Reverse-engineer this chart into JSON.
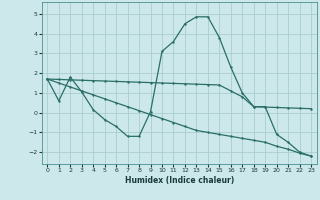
{
  "xlabel": "Humidex (Indice chaleur)",
  "bg_color": "#cce8ea",
  "grid_color": "#aacdd0",
  "line_color": "#2a6e68",
  "xlim": [
    -0.5,
    23.5
  ],
  "ylim": [
    -2.6,
    5.6
  ],
  "xticks": [
    0,
    1,
    2,
    3,
    4,
    5,
    6,
    7,
    8,
    9,
    10,
    11,
    12,
    13,
    14,
    15,
    16,
    17,
    18,
    19,
    20,
    21,
    22,
    23
  ],
  "yticks": [
    -2,
    -1,
    0,
    1,
    2,
    3,
    4,
    5
  ],
  "curve1_x": [
    0,
    1,
    2,
    3,
    4,
    5,
    6,
    7,
    8,
    9,
    10,
    11,
    12,
    13,
    14,
    15,
    16,
    17,
    18,
    19,
    20,
    21,
    22,
    23
  ],
  "curve1_y": [
    1.7,
    0.6,
    1.8,
    1.05,
    0.15,
    -0.35,
    -0.7,
    -1.2,
    -1.2,
    0.05,
    3.1,
    3.6,
    4.5,
    4.85,
    4.85,
    3.8,
    2.3,
    1.0,
    0.3,
    0.3,
    -1.1,
    -1.5,
    -2.0,
    -2.2
  ],
  "curve2_x": [
    0,
    1,
    2,
    3,
    4,
    5,
    6,
    7,
    8,
    9,
    10,
    11,
    12,
    13,
    14,
    15,
    16,
    17,
    18,
    19,
    20,
    21,
    22,
    23
  ],
  "curve2_y": [
    1.7,
    1.68,
    1.66,
    1.64,
    1.62,
    1.6,
    1.58,
    1.56,
    1.54,
    1.52,
    1.5,
    1.48,
    1.46,
    1.44,
    1.42,
    1.4,
    1.1,
    0.8,
    0.3,
    0.28,
    0.26,
    0.24,
    0.22,
    0.2
  ],
  "curve3_x": [
    0,
    1,
    2,
    3,
    4,
    5,
    6,
    7,
    8,
    9,
    10,
    11,
    12,
    13,
    14,
    15,
    16,
    17,
    18,
    19,
    20,
    21,
    22,
    23
  ],
  "curve3_y": [
    1.7,
    1.5,
    1.3,
    1.1,
    0.9,
    0.7,
    0.5,
    0.3,
    0.1,
    -0.1,
    -0.3,
    -0.5,
    -0.7,
    -0.9,
    -1.0,
    -1.1,
    -1.2,
    -1.3,
    -1.4,
    -1.5,
    -1.7,
    -1.85,
    -2.05,
    -2.2
  ]
}
